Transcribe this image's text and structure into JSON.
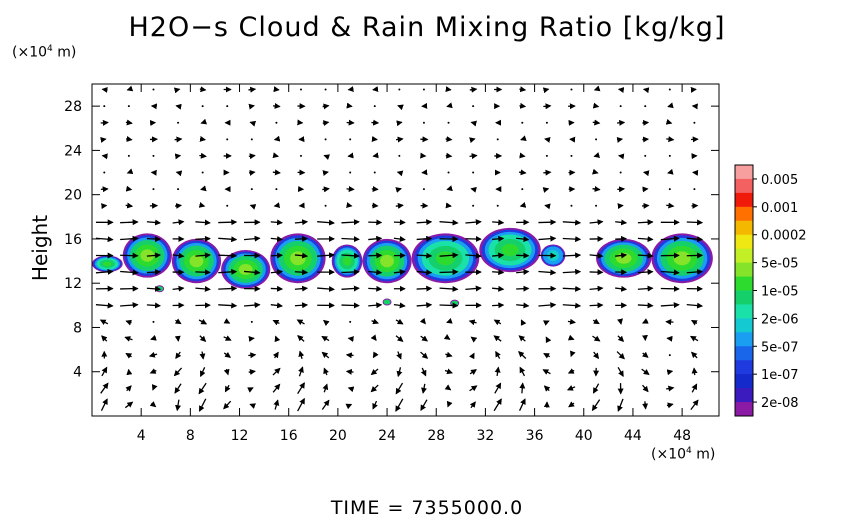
{
  "chart_data": {
    "type": "heatmap",
    "title": "H2O−s Cloud & Rain Mixing Ratio [kg/kg]",
    "ylabel": "Height",
    "y_unit_prefix": "(×10",
    "y_unit_exp": "4",
    "y_unit_suffix": " m)",
    "x_unit_prefix": "(×10",
    "x_unit_exp": "4",
    "x_unit_suffix": " m)",
    "footer": "TIME  =  7355000.0",
    "xlim": [
      0,
      51
    ],
    "ylim": [
      0,
      30
    ],
    "x_ticks": [
      4,
      8,
      12,
      16,
      20,
      24,
      28,
      32,
      36,
      40,
      44,
      48
    ],
    "y_ticks": [
      4,
      8,
      12,
      16,
      20,
      24,
      28
    ],
    "colorbar_labels": [
      "0.005",
      "0.001",
      "0.0002",
      "5e-05",
      "1e-05",
      "2e-06",
      "5e-07",
      "1e-07",
      "2e-08"
    ],
    "colorbar_colors": [
      "#f79e9e",
      "#f36161",
      "#ef1a0a",
      "#ff7000",
      "#f5b800",
      "#f0e812",
      "#c3ef26",
      "#85e42a",
      "#2ddb2e",
      "#15d06a",
      "#19e1a8",
      "#14c9d2",
      "#1a9ef2",
      "#1a66ea",
      "#1f3be0",
      "#152acb",
      "#3b1bbd",
      "#8b1aa5"
    ],
    "cloud_bands": [
      {
        "x0": 0.0,
        "x1": 2.5,
        "y0": 13.0,
        "y1": 14.5,
        "level": "1e-05"
      },
      {
        "x0": 2.5,
        "x1": 6.5,
        "y0": 12.5,
        "y1": 16.5,
        "level": "5e-05"
      },
      {
        "x0": 6.5,
        "x1": 10.5,
        "y0": 12.0,
        "y1": 16.0,
        "level": "5e-05"
      },
      {
        "x0": 10.5,
        "x1": 14.5,
        "y0": 11.5,
        "y1": 15.0,
        "level": "5e-05"
      },
      {
        "x0": 14.5,
        "x1": 19.0,
        "y0": 12.0,
        "y1": 16.5,
        "level": "5e-05"
      },
      {
        "x0": 19.5,
        "x1": 22.0,
        "y0": 12.5,
        "y1": 15.5,
        "level": "1e-05"
      },
      {
        "x0": 22.0,
        "x1": 26.0,
        "y0": 12.0,
        "y1": 16.0,
        "level": "5e-05"
      },
      {
        "x0": 26.0,
        "x1": 31.5,
        "y0": 12.0,
        "y1": 16.5,
        "level": "1e-05"
      },
      {
        "x0": 31.5,
        "x1": 36.5,
        "y0": 13.0,
        "y1": 17.0,
        "level": "1e-05"
      },
      {
        "x0": 36.5,
        "x1": 38.5,
        "y0": 13.5,
        "y1": 15.5,
        "level": "2e-06"
      },
      {
        "x0": 41.0,
        "x1": 45.5,
        "y0": 12.5,
        "y1": 16.0,
        "level": "5e-05"
      },
      {
        "x0": 45.5,
        "x1": 50.5,
        "y0": 12.0,
        "y1": 16.5,
        "level": "5e-05"
      }
    ],
    "wind_vectors": "uniform grid of horizontal/vertical flow arrows (values not labeled)"
  }
}
